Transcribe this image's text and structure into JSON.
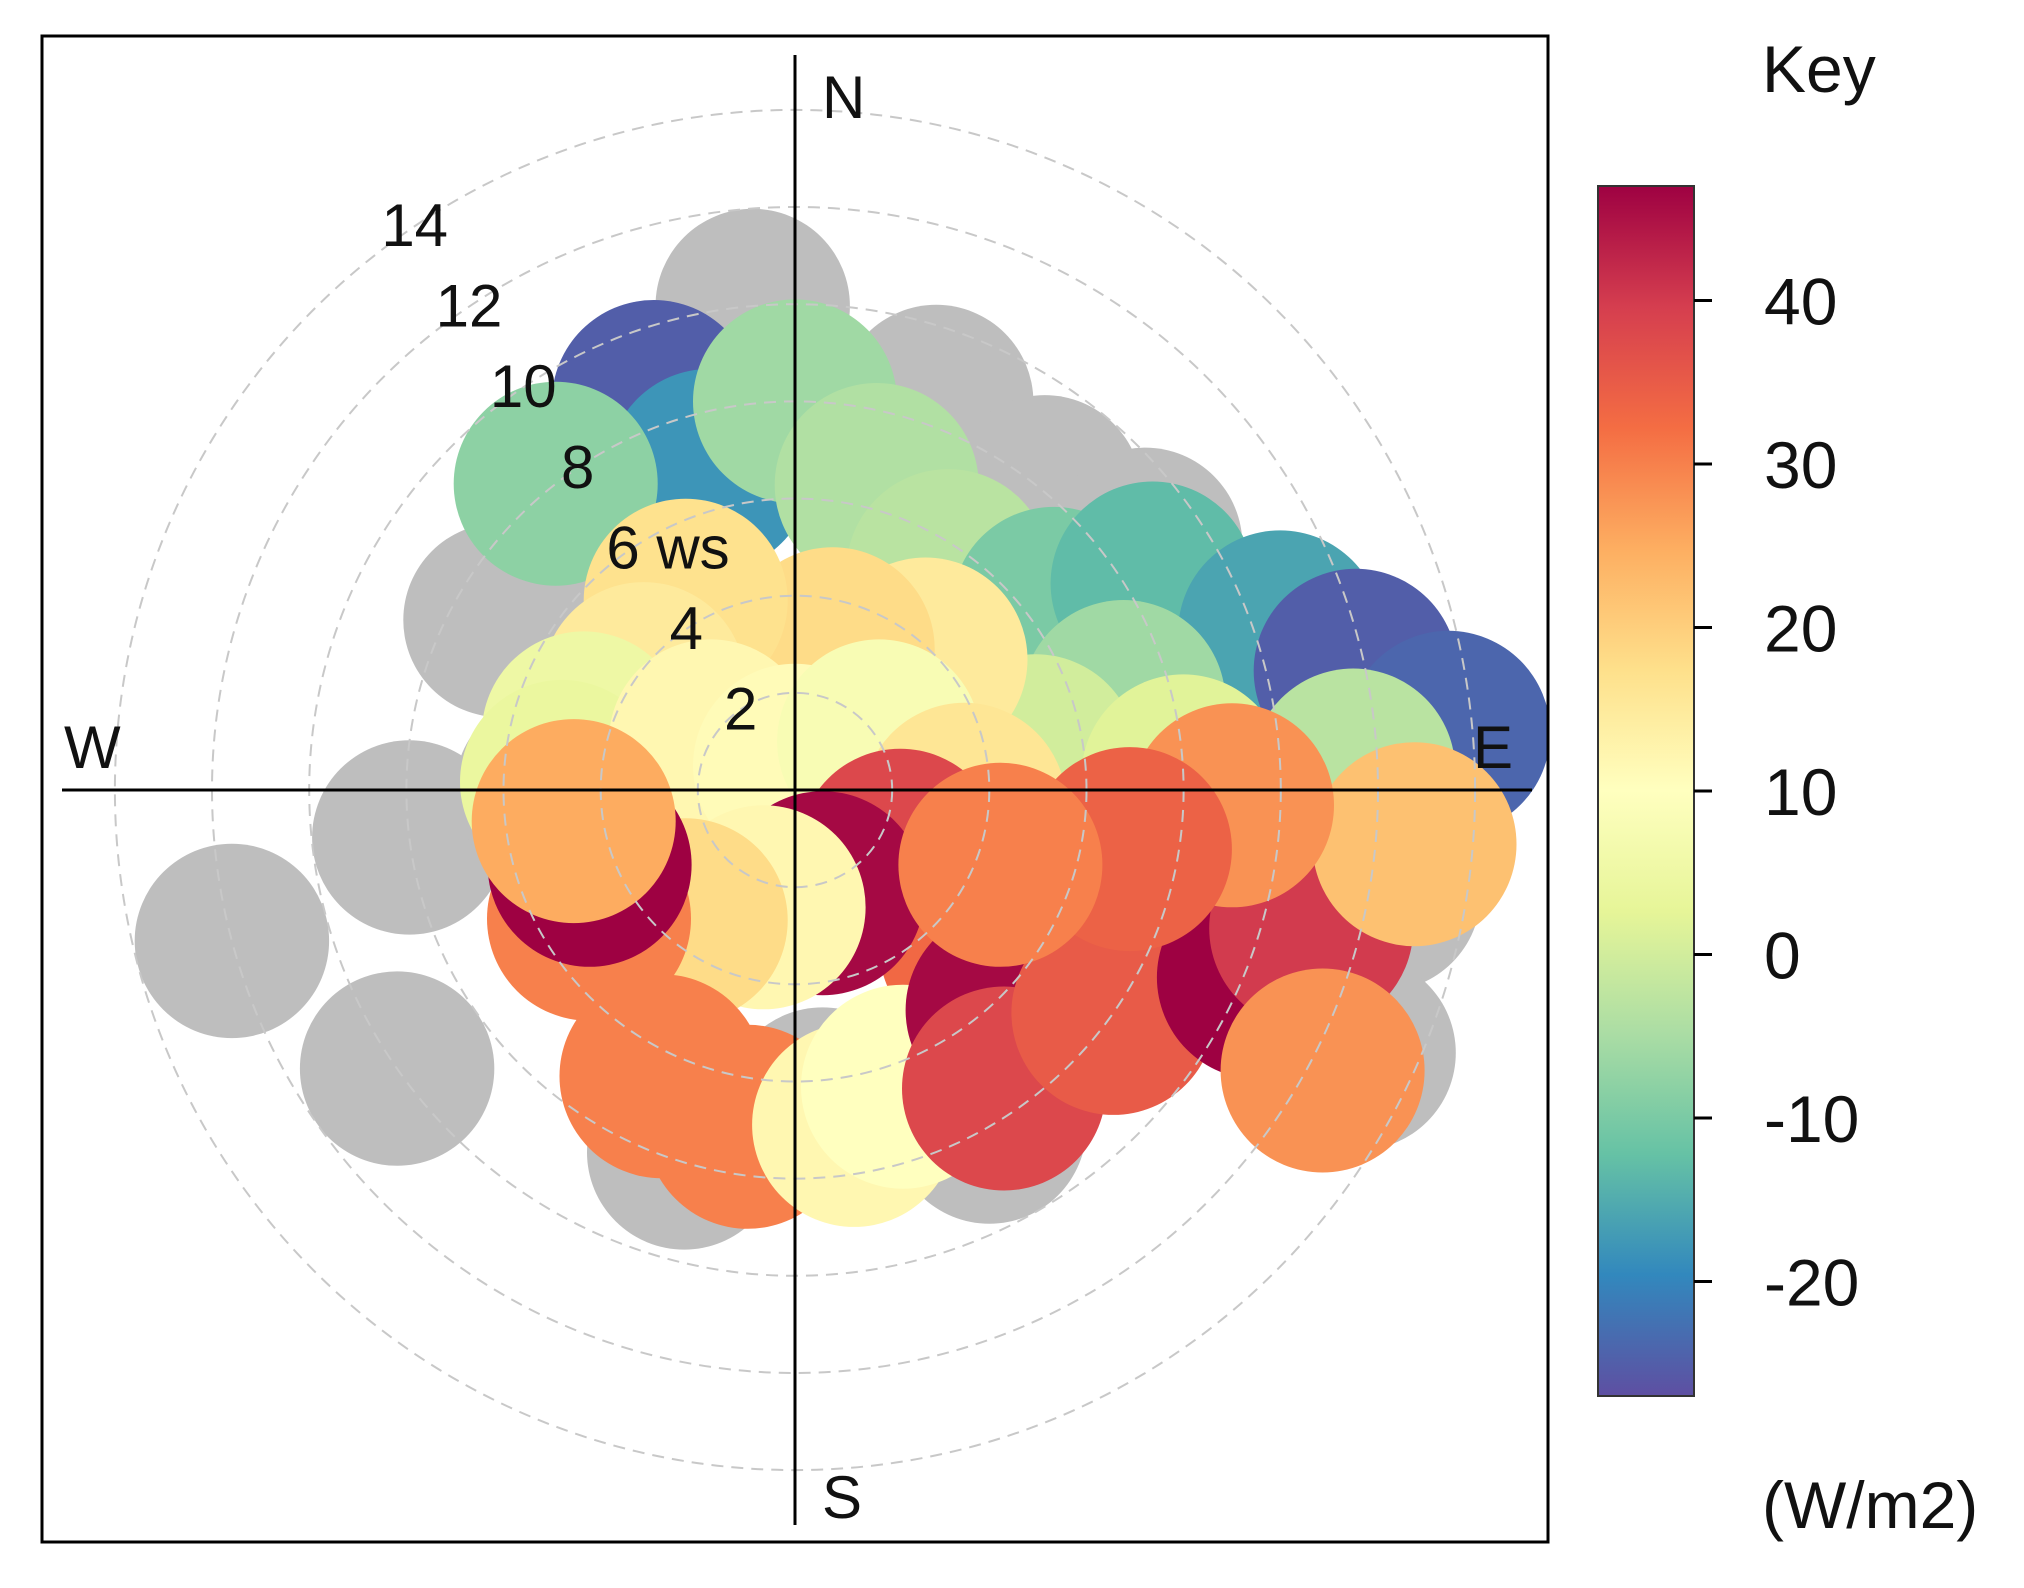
{
  "chart_data": {
    "type": "polar-heatmap",
    "title": "",
    "directions": {
      "north": "N",
      "south": "S",
      "east": "E",
      "west": "W"
    },
    "radial_axis": {
      "variable": "ws",
      "max": 15.5,
      "circles": [
        2,
        4,
        6,
        8,
        10,
        12,
        14
      ],
      "labels": [
        "2",
        "4",
        "6 ws",
        "8",
        "10",
        "12",
        "14"
      ]
    },
    "color_scale": {
      "title": "Key",
      "units": "(W/m2)",
      "min": -27,
      "max": 47,
      "ticks": [
        40,
        30,
        20,
        10,
        0,
        -10,
        -20
      ],
      "tick_labels": [
        "40",
        "30",
        "20",
        "10",
        "0",
        "-10",
        "-20"
      ],
      "palette": [
        "#5E4FA2",
        "#3288BD",
        "#66C2A5",
        "#ABDDA4",
        "#E6F598",
        "#FFFFBF",
        "#FEE08B",
        "#FDAE61",
        "#F46D43",
        "#D53E4F",
        "#9E0142"
      ]
    },
    "missing_color": "#bebebe",
    "sample_points": [
      {
        "angle": 355,
        "ws": 10.0,
        "value": null
      },
      {
        "angle": 20,
        "ws": 8.5,
        "value": null
      },
      {
        "angle": 40,
        "ws": 8.0,
        "value": null
      },
      {
        "angle": 55,
        "ws": 8.8,
        "value": null
      },
      {
        "angle": 72,
        "ws": 10.2,
        "value": null
      },
      {
        "angle": 100,
        "ws": 12.3,
        "value": null
      },
      {
        "angle": 115,
        "ws": 12.8,
        "value": null
      },
      {
        "angle": 150,
        "ws": 8.0,
        "value": null
      },
      {
        "angle": 175,
        "ws": 6.5,
        "value": null
      },
      {
        "angle": 197,
        "ws": 7.8,
        "value": null
      },
      {
        "angle": 235,
        "ws": 10.0,
        "value": null
      },
      {
        "angle": 255,
        "ws": 12.0,
        "value": null
      },
      {
        "angle": 263,
        "ws": 8.0,
        "value": null
      },
      {
        "angle": 270,
        "ws": 5.0,
        "value": null
      },
      {
        "angle": 300,
        "ws": 7.0,
        "value": null
      },
      {
        "angle": 335,
        "ws": 6.5,
        "value": null
      },
      {
        "angle": 340,
        "ws": 8.5,
        "value": -25
      },
      {
        "angle": 345,
        "ws": 6.8,
        "value": -18
      },
      {
        "angle": 322,
        "ws": 8.0,
        "value": -8
      },
      {
        "angle": 0,
        "ws": 8.0,
        "value": -6
      },
      {
        "angle": 15,
        "ws": 6.5,
        "value": -4
      },
      {
        "angle": 35,
        "ws": 5.5,
        "value": -3
      },
      {
        "angle": 55,
        "ws": 6.5,
        "value": -10
      },
      {
        "angle": 60,
        "ws": 8.5,
        "value": -13
      },
      {
        "angle": 72,
        "ws": 10.5,
        "value": -16
      },
      {
        "angle": 78,
        "ws": 11.8,
        "value": -25
      },
      {
        "angle": 85,
        "ws": 13.5,
        "value": -24
      },
      {
        "angle": 75,
        "ws": 7.0,
        "value": -6
      },
      {
        "angle": 82,
        "ws": 5.0,
        "value": 0
      },
      {
        "angle": 88,
        "ws": 8.0,
        "value": 2
      },
      {
        "angle": 88,
        "ws": 11.5,
        "value": -3
      },
      {
        "angle": 45,
        "ws": 3.8,
        "value": 15
      },
      {
        "angle": 15,
        "ws": 3.0,
        "value": 18
      },
      {
        "angle": 330,
        "ws": 4.5,
        "value": 17
      },
      {
        "angle": 305,
        "ws": 3.8,
        "value": 15
      },
      {
        "angle": 285,
        "ws": 4.5,
        "value": 5
      },
      {
        "angle": 272,
        "ws": 4.8,
        "value": 4
      },
      {
        "angle": 300,
        "ws": 2.0,
        "value": 12
      },
      {
        "angle": 0,
        "ws": 0.5,
        "value": 11
      },
      {
        "angle": 60,
        "ws": 2.0,
        "value": 8
      },
      {
        "angle": 95,
        "ws": 3.5,
        "value": 16
      },
      {
        "angle": 120,
        "ws": 2.5,
        "value": 38
      },
      {
        "angle": 130,
        "ws": 5.0,
        "value": 33
      },
      {
        "angle": 165,
        "ws": 2.2,
        "value": 46
      },
      {
        "angle": 195,
        "ws": 2.5,
        "value": 12
      },
      {
        "angle": 220,
        "ws": 3.5,
        "value": 18
      },
      {
        "angle": 238,
        "ws": 5.0,
        "value": 30
      },
      {
        "angle": 250,
        "ws": 4.5,
        "value": 47
      },
      {
        "angle": 262,
        "ws": 4.6,
        "value": 25
      },
      {
        "angle": 205,
        "ws": 6.5,
        "value": 30
      },
      {
        "angle": 188,
        "ws": 7.0,
        "value": 30
      },
      {
        "angle": 170,
        "ws": 7.0,
        "value": 12
      },
      {
        "angle": 160,
        "ws": 6.5,
        "value": 10
      },
      {
        "angle": 136,
        "ws": 6.3,
        "value": 46
      },
      {
        "angle": 145,
        "ws": 7.5,
        "value": 38
      },
      {
        "angle": 125,
        "ws": 8.0,
        "value": 35
      },
      {
        "angle": 112,
        "ws": 10.3,
        "value": 47
      },
      {
        "angle": 105,
        "ws": 11.0,
        "value": 40
      },
      {
        "angle": 118,
        "ws": 12.3,
        "value": 28
      },
      {
        "angle": 95,
        "ws": 12.8,
        "value": 22
      },
      {
        "angle": 92,
        "ws": 9.0,
        "value": 28
      },
      {
        "angle": 100,
        "ws": 7.0,
        "value": 34
      },
      {
        "angle": 110,
        "ws": 4.5,
        "value": 30
      }
    ]
  }
}
